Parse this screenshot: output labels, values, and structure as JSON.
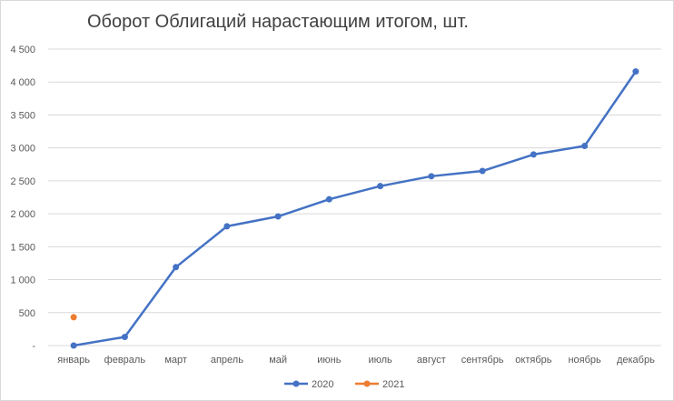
{
  "chart_data": {
    "type": "line",
    "title": "Оборот Облигаций нарастающим итогом, шт.",
    "categories": [
      "январь",
      "февраль",
      "март",
      "апрель",
      "май",
      "июнь",
      "июль",
      "август",
      "сентябрь",
      "октябрь",
      "ноябрь",
      "декабрь"
    ],
    "y_ticks": [
      "-",
      "500",
      "1 000",
      "1 500",
      "2 000",
      "2 500",
      "3 000",
      "3 500",
      "4 000",
      "4 500"
    ],
    "ylim": [
      0,
      4500
    ],
    "grid": true,
    "legend_position": "bottom",
    "series": [
      {
        "name": "2020",
        "color": "#4472c4",
        "values": [
          0,
          130,
          1190,
          1810,
          1960,
          2220,
          2420,
          2570,
          2650,
          2900,
          3030,
          4160
        ]
      },
      {
        "name": "2021",
        "color": "#ed7d31",
        "values": [
          430,
          null,
          null,
          null,
          null,
          null,
          null,
          null,
          null,
          null,
          null,
          null
        ]
      }
    ]
  }
}
